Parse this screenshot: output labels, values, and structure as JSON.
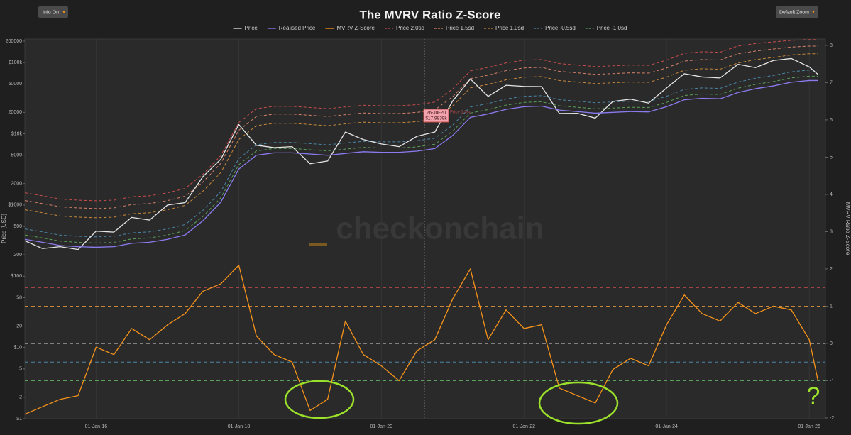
{
  "chart_data": {
    "type": "line",
    "title": "The MVRV Ratio Z-Score",
    "controls": {
      "left_button": "Info On",
      "right_button": "Default Zoom"
    },
    "watermark": "checkonchain",
    "ylabel": "Price [USD]",
    "y2label": "MVRV Ratio Z-Score",
    "ylog": true,
    "grid": true,
    "tooltip": {
      "date": "26-Jul-20",
      "value": "$17.9839k",
      "series": "Price 1.5sd"
    },
    "handwritten_note": "?",
    "xlim": [
      "2015-01-01",
      "2026-03-25"
    ],
    "xticks": [
      {
        "value": "2016-01-01",
        "label": "01-Jan-16"
      },
      {
        "value": "2018-01-01",
        "label": "01-Jan-18"
      },
      {
        "value": "2020-01-01",
        "label": "01-Jan-20"
      },
      {
        "value": "2022-01-01",
        "label": "01-Jan-22"
      },
      {
        "value": "2024-01-01",
        "label": "01-Jan-24"
      },
      {
        "value": "2026-01-01",
        "label": "01-Jan-26"
      }
    ],
    "ylim": [
      1,
      214000
    ],
    "yticks": [
      {
        "value": 1,
        "label": "$1"
      },
      2,
      5,
      {
        "value": 10,
        "label": "$10"
      },
      20,
      50,
      {
        "value": 100,
        "label": "$100"
      },
      200,
      500,
      {
        "value": 1000,
        "label": "$1000"
      },
      2000,
      5000,
      {
        "value": 10000,
        "label": "$10k"
      },
      20000,
      50000,
      {
        "value": 100000,
        "label": "$100k"
      },
      200000
    ],
    "y2lim": [
      -2.02,
      8.17
    ],
    "y2ticks": [
      -2,
      -1,
      0,
      1,
      2,
      3,
      4,
      5,
      6,
      7,
      8
    ],
    "reference_lines": [
      {
        "value": 1.5,
        "color": "#c94c4c"
      },
      {
        "value": 1,
        "color": "#c8883a"
      },
      {
        "value": 0,
        "color": "#d8d8d8"
      },
      {
        "value": -0.5,
        "color": "#4a86a8"
      },
      {
        "value": -1,
        "color": "#5aa05a"
      }
    ],
    "x": [
      "2015-01-01",
      "2015-04-01",
      "2015-07-01",
      "2015-10-01",
      "2016-01-01",
      "2016-04-01",
      "2016-07-01",
      "2016-10-01",
      "2017-01-01",
      "2017-04-01",
      "2017-07-01",
      "2017-10-01",
      "2018-01-01",
      "2018-04-01",
      "2018-07-01",
      "2018-10-01",
      "2019-01-01",
      "2019-04-01",
      "2019-07-01",
      "2019-10-01",
      "2020-01-01",
      "2020-04-01",
      "2020-07-01",
      "2020-10-01",
      "2021-01-01",
      "2021-04-01",
      "2021-07-01",
      "2021-10-01",
      "2022-01-01",
      "2022-04-01",
      "2022-07-01",
      "2022-10-01",
      "2023-01-01",
      "2023-04-01",
      "2023-07-01",
      "2023-10-01",
      "2024-01-01",
      "2024-04-01",
      "2024-07-01",
      "2024-10-01",
      "2025-01-01",
      "2025-04-01",
      "2025-07-01",
      "2025-10-01",
      "2026-01-01",
      "2026-02-15"
    ],
    "series": [
      {
        "name": "Price",
        "color": "#e6e6e6",
        "dash": false,
        "values": [
          315,
          245,
          260,
          237,
          430,
          416,
          670,
          615,
          1000,
          1080,
          2500,
          4400,
          13500,
          6900,
          6400,
          6600,
          3800,
          4150,
          10600,
          8300,
          7200,
          6600,
          9200,
          10600,
          29000,
          58800,
          33500,
          48000,
          46300,
          46000,
          19300,
          19400,
          16600,
          28500,
          30600,
          27000,
          44000,
          69700,
          62800,
          60800,
          94400,
          85000,
          107000,
          114000,
          87000,
          68000
        ]
      },
      {
        "name": "Realised Price",
        "color": "#8a7cf0",
        "dash": false,
        "values": [
          330,
          300,
          270,
          260,
          255,
          260,
          290,
          300,
          330,
          380,
          600,
          1100,
          3200,
          5000,
          5400,
          5400,
          5200,
          5000,
          5300,
          5600,
          5500,
          5500,
          5700,
          6200,
          9500,
          17000,
          19000,
          22000,
          24000,
          24500,
          21500,
          20500,
          19500,
          20000,
          20500,
          20300,
          24000,
          30000,
          31500,
          31000,
          38000,
          43000,
          47000,
          53000,
          56000,
          56000
        ]
      },
      {
        "name": "MVRV Z-Score",
        "color": "#f7931a",
        "dash": false,
        "axis": "y2",
        "values": [
          -1.9,
          -1.7,
          -1.5,
          -1.4,
          -0.1,
          -0.3,
          0.4,
          0.1,
          0.5,
          0.8,
          1.4,
          1.6,
          2.1,
          0.2,
          -0.3,
          -0.5,
          -1.8,
          -1.5,
          0.6,
          -0.3,
          -0.6,
          -1.0,
          -0.2,
          0.1,
          1.2,
          2.0,
          0.1,
          0.9,
          0.4,
          0.5,
          -1.2,
          -1.4,
          -1.6,
          -0.7,
          -0.4,
          -0.6,
          0.5,
          1.3,
          0.8,
          0.6,
          1.1,
          0.8,
          1.0,
          0.9,
          0.1,
          -1.0
        ]
      },
      {
        "name": "Price 2.0sd",
        "color": "#c94c4c",
        "dash": true,
        "values": [
          1485,
          1350,
          1215,
          1170,
          1148,
          1170,
          1305,
          1350,
          1485,
          1710,
          2700,
          4950,
          14400,
          22500,
          24300,
          24300,
          23400,
          22500,
          23850,
          25200,
          24750,
          24750,
          25650,
          27900,
          42750,
          76500,
          85500,
          99000,
          108000,
          110250,
          96750,
          92250,
          87750,
          90000,
          92250,
          91350,
          108000,
          135000,
          141750,
          139500,
          171000,
          185000,
          195000,
          205000,
          210000,
          210000
        ]
      },
      {
        "name": "Price 1.5sd",
        "color": "#d9826a",
        "dash": true,
        "values": [
          1155,
          1050,
          945,
          910,
          893,
          910,
          1015,
          1050,
          1155,
          1330,
          2100,
          3850,
          11200,
          17500,
          18900,
          18900,
          18200,
          17500,
          18550,
          19600,
          19250,
          19250,
          19950,
          21700,
          33250,
          59500,
          66500,
          77000,
          84000,
          85750,
          75250,
          71750,
          68250,
          70000,
          71750,
          71050,
          84000,
          105000,
          110250,
          108500,
          133000,
          145000,
          155000,
          165000,
          170000,
          170000
        ]
      },
      {
        "name": "Price 1.0sd",
        "color": "#c8883a",
        "dash": true,
        "values": [
          858,
          780,
          702,
          676,
          663,
          676,
          754,
          780,
          858,
          988,
          1560,
          2860,
          8320,
          13000,
          14040,
          14040,
          13520,
          13000,
          13780,
          14560,
          14300,
          14300,
          14820,
          16120,
          24700,
          44200,
          49400,
          57200,
          62400,
          63700,
          55900,
          53300,
          50700,
          52000,
          53300,
          52780,
          62400,
          78000,
          81900,
          80600,
          98800,
          110000,
          118000,
          128000,
          133000,
          133000
        ]
      },
      {
        "name": "Price -0.5sd",
        "color": "#4a86a8",
        "dash": true,
        "values": [
          462,
          420,
          378,
          364,
          357,
          364,
          406,
          420,
          462,
          532,
          840,
          1540,
          4480,
          7000,
          7560,
          7560,
          7280,
          7000,
          7420,
          7840,
          7700,
          7700,
          7980,
          8680,
          13300,
          23800,
          26600,
          30800,
          33600,
          34300,
          30100,
          28700,
          27300,
          28000,
          28700,
          28420,
          33600,
          42000,
          44100,
          43400,
          53200,
          60200,
          65800,
          74200,
          78400,
          78400
        ]
      },
      {
        "name": "Price -1.0sd",
        "color": "#5aa05a",
        "dash": true,
        "values": [
          380,
          345,
          311,
          299,
          293,
          299,
          334,
          345,
          380,
          437,
          690,
          1265,
          3680,
          5750,
          6210,
          6210,
          5980,
          5750,
          6095,
          6440,
          6325,
          6325,
          6555,
          7130,
          10925,
          19550,
          21850,
          25300,
          27600,
          28175,
          24725,
          23575,
          22425,
          23000,
          23575,
          23345,
          27600,
          34500,
          36225,
          35650,
          43700,
          49450,
          54050,
          60950,
          64400,
          64400
        ]
      }
    ]
  }
}
